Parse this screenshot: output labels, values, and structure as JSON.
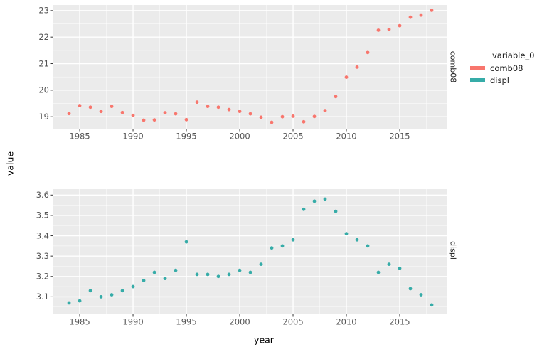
{
  "labels": {
    "y_axis_title": "value",
    "x_axis_title": "year"
  },
  "facet_strips": [
    "comb08",
    "displ"
  ],
  "legend": {
    "title": "variable_0",
    "entries": [
      {
        "label": "comb08",
        "color": "#F8766D"
      },
      {
        "label": "displ",
        "color": "#36ACA8"
      }
    ]
  },
  "chart_data": {
    "type": "scatter",
    "title": "",
    "xlabel": "year",
    "ylabel": "value",
    "legend_title": "variable_0",
    "legend_position": "right",
    "grid": "on",
    "panel_bg": "#EBEBEB",
    "grid_color": "#FFFFFF",
    "tick_color": "#333333",
    "tick_label_color": "#555555",
    "x": [
      1984,
      1985,
      1986,
      1987,
      1988,
      1989,
      1990,
      1991,
      1992,
      1993,
      1994,
      1995,
      1996,
      1997,
      1998,
      1999,
      2000,
      2001,
      2002,
      2003,
      2004,
      2005,
      2006,
      2007,
      2008,
      2009,
      2010,
      2011,
      2012,
      2013,
      2014,
      2015,
      2016,
      2017,
      2018
    ],
    "x_ticks": [
      1985,
      1990,
      1995,
      2000,
      2005,
      2010,
      2015
    ],
    "x_tick_labels": [
      "1985",
      "1990",
      "1995",
      "2000",
      "2005",
      "2010",
      "2015"
    ],
    "xlim": [
      1982.53,
      2019.4
    ],
    "facets": [
      {
        "name": "comb08",
        "color": "#F8766D",
        "ylim": [
          18.55,
          23.21
        ],
        "y_ticks": [
          19,
          20,
          21,
          22,
          23
        ],
        "y_tick_labels": [
          "19",
          "20",
          "21",
          "22",
          "23"
        ],
        "values": [
          19.12,
          19.42,
          19.36,
          19.2,
          19.39,
          19.16,
          19.05,
          18.87,
          18.88,
          19.15,
          19.11,
          18.89,
          19.55,
          19.39,
          19.36,
          19.27,
          19.2,
          19.11,
          18.98,
          18.79,
          19.0,
          19.02,
          18.81,
          19.01,
          19.23,
          19.76,
          20.49,
          20.87,
          21.42,
          22.26,
          22.29,
          22.43,
          22.75,
          22.83,
          23.01
        ]
      },
      {
        "name": "displ",
        "color": "#36ACA8",
        "ylim": [
          3.014,
          3.629
        ],
        "y_ticks": [
          3.1,
          3.2,
          3.3,
          3.4,
          3.5,
          3.6
        ],
        "y_tick_labels": [
          "3.1",
          "3.2",
          "3.3",
          "3.4",
          "3.5",
          "3.6"
        ],
        "values": [
          3.07,
          3.08,
          3.13,
          3.1,
          3.11,
          3.13,
          3.15,
          3.18,
          3.22,
          3.19,
          3.23,
          3.37,
          3.21,
          3.21,
          3.2,
          3.21,
          3.23,
          3.22,
          3.26,
          3.34,
          3.35,
          3.38,
          3.53,
          3.57,
          3.58,
          3.52,
          3.41,
          3.38,
          3.35,
          3.22,
          3.26,
          3.24,
          3.14,
          3.11,
          3.06
        ]
      }
    ]
  }
}
